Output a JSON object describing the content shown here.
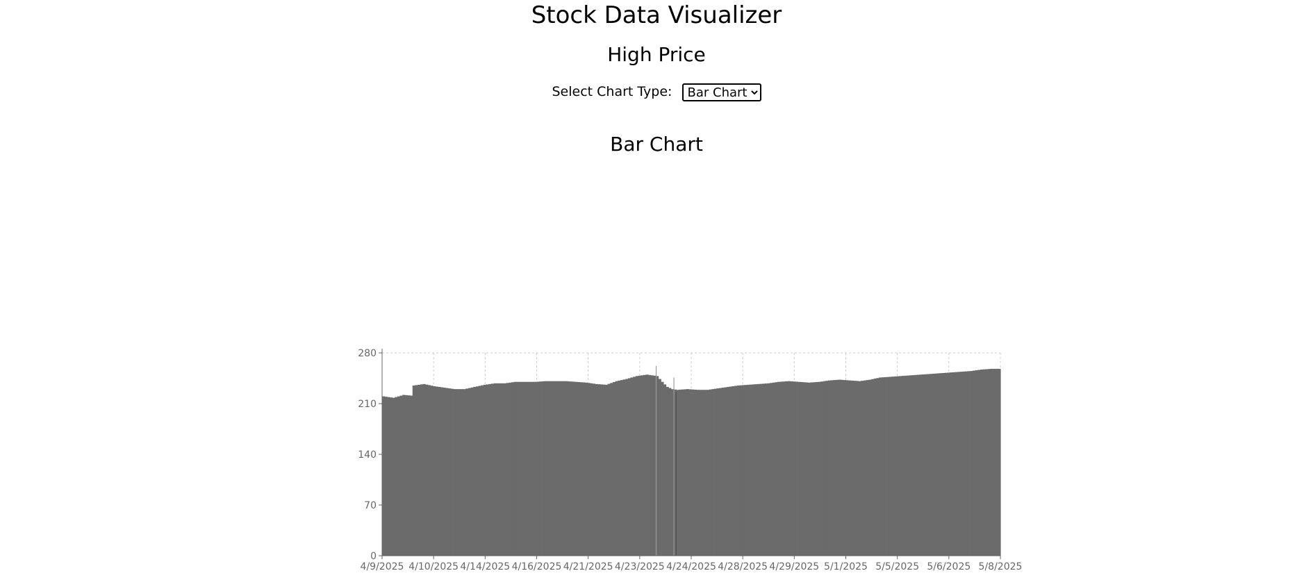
{
  "header": {
    "title": "Stock Data Visualizer",
    "subtitle": "High Price"
  },
  "controls": {
    "chart_type_label": "Select Chart Type:",
    "chart_type_selected": "Bar Chart"
  },
  "section": {
    "title": "Bar Chart"
  },
  "colors": {
    "bar_fill": "#6b6b6b",
    "grid": "#cccccc",
    "axis": "#666666"
  },
  "chart_data": {
    "type": "bar",
    "title": "Bar Chart",
    "xlabel": "",
    "ylabel": "",
    "ylim": [
      0,
      280
    ],
    "yticks": [
      0,
      70,
      140,
      210,
      280
    ],
    "grid": true,
    "legend": "none",
    "categories": [
      "4/9/2025",
      "4/10/2025",
      "4/14/2025",
      "4/16/2025",
      "4/21/2025",
      "4/23/2025",
      "4/24/2025",
      "4/28/2025",
      "4/29/2025",
      "5/1/2025",
      "5/5/2025",
      "5/6/2025",
      "5/8/2025"
    ],
    "profile": [
      [
        0,
        220
      ],
      [
        4,
        218
      ],
      [
        8,
        222
      ],
      [
        11,
        221
      ],
      [
        12,
        235
      ],
      [
        16,
        237
      ],
      [
        20,
        234
      ],
      [
        24,
        232
      ],
      [
        28,
        230
      ],
      [
        32,
        230
      ],
      [
        36,
        233
      ],
      [
        40,
        236
      ],
      [
        44,
        238
      ],
      [
        48,
        238
      ],
      [
        52,
        240
      ],
      [
        56,
        240
      ],
      [
        60,
        240
      ],
      [
        64,
        241
      ],
      [
        68,
        241
      ],
      [
        72,
        241
      ],
      [
        76,
        240
      ],
      [
        80,
        239
      ],
      [
        84,
        237
      ],
      [
        88,
        236
      ],
      [
        92,
        241
      ],
      [
        96,
        244
      ],
      [
        100,
        248
      ],
      [
        104,
        250
      ],
      [
        108,
        248
      ],
      [
        110,
        240
      ],
      [
        112,
        233
      ],
      [
        114,
        230
      ],
      [
        116,
        229
      ],
      [
        120,
        230
      ],
      [
        124,
        229
      ],
      [
        128,
        229
      ],
      [
        132,
        231
      ],
      [
        136,
        233
      ],
      [
        140,
        235
      ],
      [
        144,
        236
      ],
      [
        148,
        237
      ],
      [
        152,
        238
      ],
      [
        156,
        240
      ],
      [
        160,
        241
      ],
      [
        164,
        240
      ],
      [
        168,
        239
      ],
      [
        172,
        240
      ],
      [
        176,
        242
      ],
      [
        180,
        243
      ],
      [
        184,
        242
      ],
      [
        188,
        241
      ],
      [
        192,
        243
      ],
      [
        196,
        246
      ],
      [
        200,
        247
      ],
      [
        204,
        248
      ],
      [
        208,
        249
      ],
      [
        212,
        250
      ],
      [
        216,
        251
      ],
      [
        220,
        252
      ],
      [
        224,
        253
      ],
      [
        228,
        254
      ],
      [
        232,
        255
      ],
      [
        236,
        257
      ],
      [
        240,
        258
      ],
      [
        243,
        258
      ]
    ],
    "spikes": [
      [
        108,
        262
      ],
      [
        115,
        246
      ]
    ],
    "dip": [
      116,
      226
    ]
  }
}
